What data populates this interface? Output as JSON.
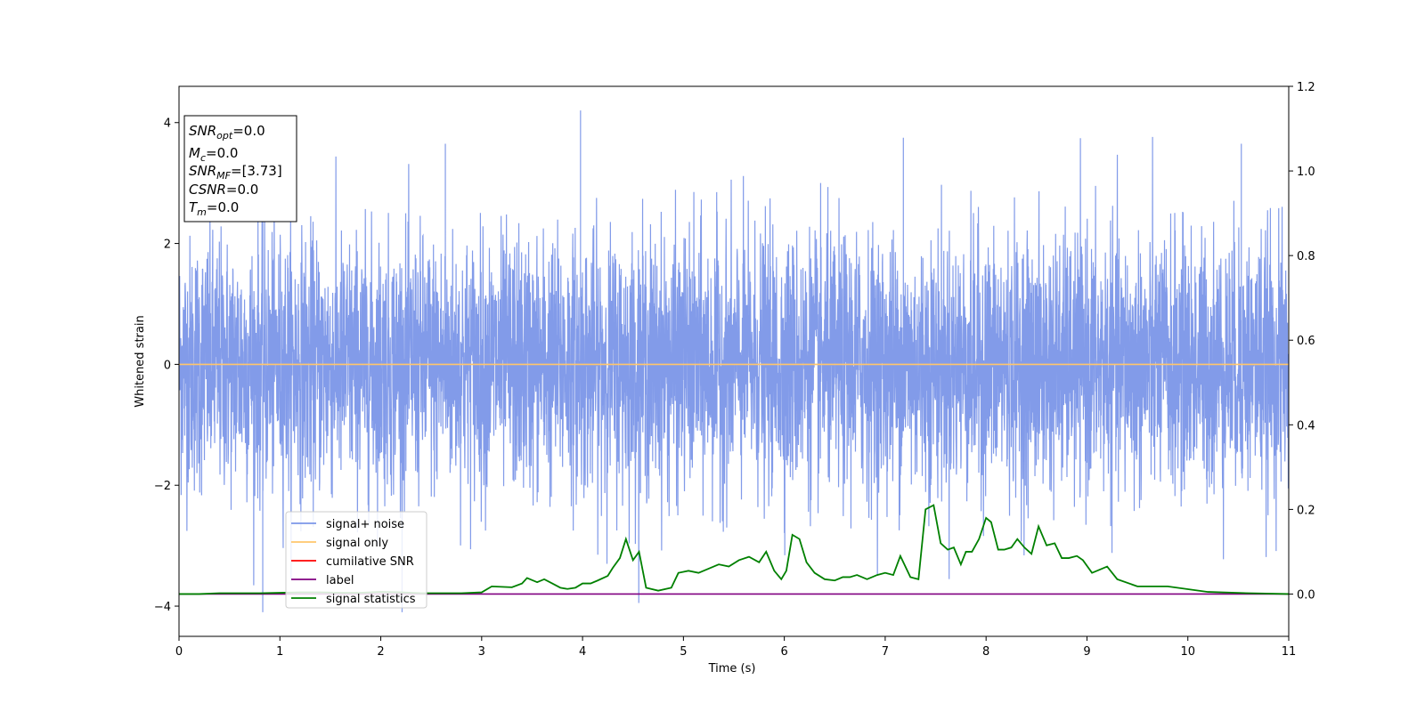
{
  "chart_data": {
    "type": "line",
    "xlabel": "Time (s)",
    "ylabel": "Whitened strain",
    "xlim": [
      0,
      11
    ],
    "ylim_left": [
      -4.5,
      4.6
    ],
    "ylim_right": [
      -0.1,
      1.2
    ],
    "x_ticks": [
      "0",
      "1",
      "2",
      "3",
      "4",
      "5",
      "6",
      "7",
      "8",
      "9",
      "10",
      "11"
    ],
    "y_ticks_left": [
      "−4",
      "−2",
      "0",
      "2",
      "4"
    ],
    "y_ticks_right": [
      "0.0",
      "0.2",
      "0.4",
      "0.6",
      "0.8",
      "1.0",
      "1.2"
    ],
    "info_box": [
      {
        "main": "SNR",
        "sub": "opt",
        "value": "=0.0"
      },
      {
        "main": "M",
        "sub": "c",
        "value": "=0.0"
      },
      {
        "main": "SNR",
        "sub": "MF",
        "value": "=[3.73]"
      },
      {
        "main": "CSNR",
        "sub": "",
        "value": "=0.0"
      },
      {
        "main": "T",
        "sub": "m",
        "value": "=0.0"
      }
    ],
    "legend": [
      {
        "label": "signal+ noise",
        "color": "#7b96e8"
      },
      {
        "label": "signal only",
        "color": "#ffc66b"
      },
      {
        "label": "cumilative SNR",
        "color": "#ff0000"
      },
      {
        "label": "label",
        "color": "#800080"
      },
      {
        "label": "signal statistics",
        "color": "#008000"
      }
    ],
    "series": [
      {
        "name": "signal+ noise",
        "axis": "left",
        "color": "#7b96e8",
        "description_range": [
          -4.1,
          4.2
        ],
        "peaks": [
          {
            "x": 0.83,
            "y": -4.1
          },
          {
            "x": 3.98,
            "y": 4.2
          },
          {
            "x": 7.18,
            "y": 3.75
          },
          {
            "x": 10.53,
            "y": 3.65
          },
          {
            "x": 2.64,
            "y": 3.65
          }
        ]
      },
      {
        "name": "signal only",
        "axis": "left",
        "color": "#ffc66b",
        "x": [
          0,
          11
        ],
        "y": [
          0,
          0
        ]
      },
      {
        "name": "label",
        "axis": "right",
        "color": "#800080",
        "x": [
          0,
          11
        ],
        "y": [
          0,
          0
        ]
      },
      {
        "name": "signal statistics",
        "axis": "right",
        "color": "#008000",
        "x": [
          0,
          0.2,
          0.4,
          0.6,
          0.8,
          1.0,
          1.2,
          1.4,
          1.6,
          1.8,
          2.0,
          2.2,
          2.4,
          2.6,
          2.8,
          3.0,
          3.1,
          3.2,
          3.3,
          3.4,
          3.45,
          3.55,
          3.62,
          3.7,
          3.78,
          3.85,
          3.93,
          4.0,
          4.08,
          4.15,
          4.25,
          4.3,
          4.37,
          4.43,
          4.5,
          4.56,
          4.63,
          4.75,
          4.88,
          4.95,
          5.05,
          5.15,
          5.25,
          5.35,
          5.45,
          5.55,
          5.65,
          5.75,
          5.82,
          5.9,
          5.97,
          6.02,
          6.08,
          6.15,
          6.22,
          6.3,
          6.4,
          6.5,
          6.58,
          6.65,
          6.72,
          6.82,
          6.92,
          7.0,
          7.08,
          7.15,
          7.25,
          7.33,
          7.4,
          7.48,
          7.55,
          7.62,
          7.68,
          7.75,
          7.8,
          7.86,
          7.93,
          8.0,
          8.05,
          8.12,
          8.18,
          8.25,
          8.31,
          8.38,
          8.45,
          8.52,
          8.6,
          8.68,
          8.75,
          8.82,
          8.9,
          8.96,
          9.05,
          9.2,
          9.3,
          9.5,
          9.8,
          10.2,
          10.6,
          11.0
        ],
        "y": [
          0.0,
          0.0,
          0.002,
          0.002,
          0.002,
          0.003,
          0.004,
          0.004,
          0.003,
          0.003,
          0.005,
          0.004,
          0.002,
          0.002,
          0.002,
          0.004,
          0.018,
          0.017,
          0.016,
          0.025,
          0.038,
          0.028,
          0.035,
          0.025,
          0.015,
          0.012,
          0.015,
          0.025,
          0.025,
          0.032,
          0.043,
          0.062,
          0.085,
          0.13,
          0.08,
          0.1,
          0.015,
          0.008,
          0.015,
          0.05,
          0.055,
          0.05,
          0.06,
          0.07,
          0.065,
          0.08,
          0.088,
          0.075,
          0.1,
          0.055,
          0.035,
          0.055,
          0.14,
          0.13,
          0.075,
          0.05,
          0.035,
          0.032,
          0.04,
          0.04,
          0.045,
          0.035,
          0.045,
          0.05,
          0.045,
          0.09,
          0.04,
          0.035,
          0.2,
          0.21,
          0.12,
          0.105,
          0.11,
          0.07,
          0.1,
          0.1,
          0.13,
          0.18,
          0.17,
          0.105,
          0.105,
          0.11,
          0.13,
          0.11,
          0.095,
          0.16,
          0.115,
          0.12,
          0.085,
          0.085,
          0.09,
          0.08,
          0.05,
          0.065,
          0.035,
          0.018,
          0.018,
          0.005,
          0.002,
          0.0
        ]
      }
    ]
  }
}
